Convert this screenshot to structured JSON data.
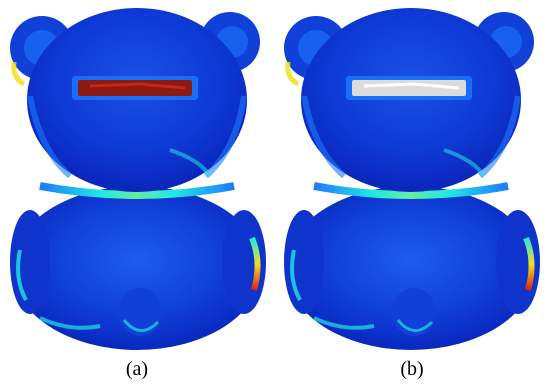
{
  "figure": {
    "panels": [
      {
        "caption": "(a)",
        "hole_fill_color": "#8b1a10",
        "hole_fill_highlight": "#c02818"
      },
      {
        "caption": "(b)",
        "hole_fill_color": "#dcdcdc",
        "hole_fill_highlight": "#ffffff"
      }
    ],
    "colormap": {
      "low": "#0a22c8",
      "mid": "#1e78ff",
      "high_cyan": "#20e6e6",
      "high_yellow": "#f0e020",
      "peak": "#e02010"
    }
  }
}
